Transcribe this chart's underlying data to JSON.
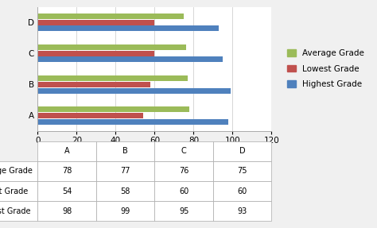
{
  "categories": [
    "A",
    "B",
    "C",
    "D"
  ],
  "series": [
    {
      "name": "Average Grade",
      "values": [
        78,
        77,
        76,
        75
      ],
      "color": "#9BBB59"
    },
    {
      "name": "Lowest Grade",
      "values": [
        54,
        58,
        60,
        60
      ],
      "color": "#C0504D"
    },
    {
      "name": "Highest Grade",
      "values": [
        98,
        99,
        95,
        93
      ],
      "color": "#4F81BD"
    }
  ],
  "xlim": [
    0,
    120
  ],
  "xticks": [
    0,
    20,
    40,
    60,
    80,
    100,
    120
  ],
  "bar_height": 0.18,
  "bar_gap": 0.02,
  "background_color": "#F0F0F0",
  "chart_bg": "#FFFFFF",
  "grid_color": "#D0D0D0",
  "font_size": 7.5,
  "legend_font_size": 7.5,
  "table_font_size": 7.0,
  "table_header_bg": "#FFFFFF"
}
